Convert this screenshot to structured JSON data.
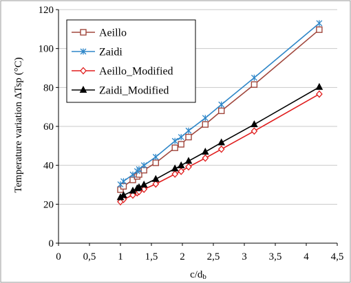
{
  "chart_data": {
    "type": "line",
    "xlabel": "c/d",
    "xlabel_sub": "b",
    "ylabel": "Temperature variation ΔTsp (°C)",
    "xlim": [
      0,
      4.5
    ],
    "ylim": [
      0,
      120
    ],
    "xticks": [
      0,
      0.5,
      1,
      1.5,
      2,
      2.5,
      3,
      3.5,
      4,
      4.5
    ],
    "xtick_labels": [
      "0",
      "0,5",
      "1",
      "1,5",
      "2",
      "2,5",
      "3",
      "3,5",
      "4",
      "4,5"
    ],
    "yticks": [
      0,
      20,
      40,
      60,
      80,
      100,
      120
    ],
    "ytick_labels": [
      "0",
      "20",
      "40",
      "60",
      "80",
      "100",
      "120"
    ],
    "grid": "horizontal",
    "legend_position": "top-left",
    "series": [
      {
        "name": "Aeillo",
        "color": "#a0463c",
        "marker": "square-open",
        "x": [
          1.0,
          1.05,
          1.2,
          1.27,
          1.3,
          1.38,
          1.57,
          1.88,
          1.98,
          2.1,
          2.37,
          2.63,
          3.16,
          4.21
        ],
        "y": [
          27.5,
          29.2,
          32.5,
          34.3,
          35.3,
          37.5,
          41.3,
          49.0,
          50.8,
          54.5,
          61.0,
          68.0,
          81.5,
          109.7
        ]
      },
      {
        "name": "Zaidi",
        "color": "#2e86c8",
        "marker": "asterisk",
        "x": [
          1.0,
          1.05,
          1.2,
          1.27,
          1.3,
          1.38,
          1.57,
          1.88,
          1.98,
          2.1,
          2.37,
          2.63,
          3.16,
          4.21
        ],
        "y": [
          30.2,
          31.8,
          35.2,
          37.0,
          38.0,
          40.0,
          44.3,
          52.5,
          54.5,
          57.8,
          64.3,
          71.2,
          85.0,
          113.0
        ]
      },
      {
        "name": "Aeillo_Modified",
        "color": "#e01c1c",
        "marker": "diamond-open",
        "x": [
          1.0,
          1.05,
          1.2,
          1.27,
          1.3,
          1.38,
          1.57,
          1.88,
          1.98,
          2.1,
          2.37,
          2.63,
          3.16,
          4.21
        ],
        "y": [
          21.3,
          22.5,
          24.7,
          25.9,
          26.5,
          27.7,
          30.4,
          35.5,
          36.9,
          39.2,
          43.7,
          48.3,
          57.6,
          76.6
        ]
      },
      {
        "name": "Zaidi_Modified",
        "color": "#000000",
        "marker": "triangle",
        "x": [
          1.0,
          1.05,
          1.2,
          1.27,
          1.3,
          1.38,
          1.57,
          1.88,
          1.98,
          2.1,
          2.37,
          2.63,
          3.16,
          4.21
        ],
        "y": [
          23.5,
          24.6,
          26.9,
          28.1,
          28.7,
          30.0,
          32.9,
          38.3,
          39.9,
          42.2,
          46.9,
          51.7,
          61.0,
          80.2
        ]
      }
    ]
  }
}
